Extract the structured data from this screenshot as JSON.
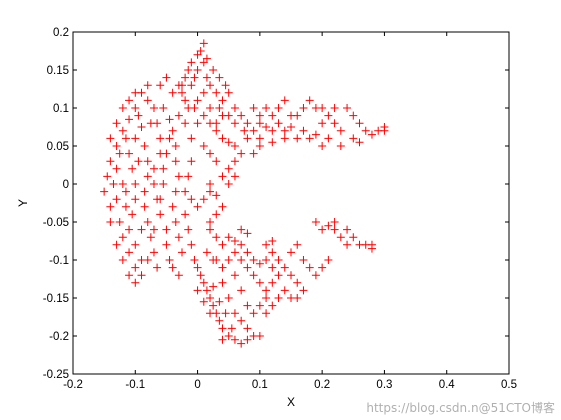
{
  "chart_data": {
    "type": "scatter",
    "xlabel": "X",
    "ylabel": "Y",
    "xlim": [
      -0.2,
      0.5
    ],
    "ylim": [
      -0.25,
      0.2
    ],
    "xticks": [
      -0.2,
      -0.1,
      0,
      0.1,
      0.2,
      0.3,
      0.4,
      0.5
    ],
    "yticks": [
      -0.25,
      -0.2,
      -0.15,
      -0.1,
      -0.05,
      0,
      0.05,
      0.1,
      0.15,
      0.2
    ],
    "xtick_labels": [
      "-0.2",
      "-0.1",
      "0",
      "0.1",
      "0.2",
      "0.3",
      "0.4",
      "0.5"
    ],
    "ytick_labels": [
      "-0.25",
      "-0.2",
      "-0.15",
      "-0.1",
      "-0.05",
      "0",
      "0.05",
      "0.1",
      "0.15",
      "0.2"
    ],
    "grid": false,
    "legend": "none",
    "marker": "+",
    "marker_color": "#ff0000",
    "series": [
      {
        "points": [
          [
            -0.14,
            0.03
          ],
          [
            -0.145,
            0.01
          ],
          [
            -0.15,
            -0.01
          ],
          [
            -0.14,
            -0.03
          ],
          [
            -0.13,
            0.05
          ],
          [
            -0.12,
            0.07
          ],
          [
            -0.11,
            0.085
          ],
          [
            -0.1,
            0.1
          ],
          [
            -0.125,
            -0.05
          ],
          [
            -0.12,
            -0.07
          ],
          [
            -0.11,
            -0.09
          ],
          [
            -0.1,
            -0.11
          ],
          [
            -0.09,
            -0.12
          ],
          [
            -0.135,
            0.0
          ],
          [
            -0.13,
            -0.02
          ],
          [
            -0.13,
            0.02
          ],
          [
            -0.115,
            0.06
          ],
          [
            -0.11,
            0.04
          ],
          [
            -0.105,
            0.02
          ],
          [
            -0.1,
            0.0
          ],
          [
            -0.1,
            -0.02
          ],
          [
            -0.105,
            -0.04
          ],
          [
            -0.11,
            -0.06
          ],
          [
            -0.1,
            -0.08
          ],
          [
            -0.095,
            0.09
          ],
          [
            -0.09,
            0.075
          ],
          [
            -0.085,
            0.05
          ],
          [
            -0.08,
            0.03
          ],
          [
            -0.08,
            0.01
          ],
          [
            -0.085,
            -0.01
          ],
          [
            -0.085,
            -0.03
          ],
          [
            -0.08,
            -0.05
          ],
          [
            -0.075,
            -0.07
          ],
          [
            -0.07,
            -0.09
          ],
          [
            -0.065,
            -0.11
          ],
          [
            -0.08,
            0.11
          ],
          [
            -0.07,
            0.1
          ],
          [
            -0.065,
            0.08
          ],
          [
            -0.06,
            0.06
          ],
          [
            -0.06,
            0.04
          ],
          [
            -0.055,
            0.02
          ],
          [
            -0.055,
            0.0
          ],
          [
            -0.06,
            -0.02
          ],
          [
            -0.06,
            -0.04
          ],
          [
            -0.05,
            -0.06
          ],
          [
            -0.05,
            -0.08
          ],
          [
            -0.045,
            -0.1
          ],
          [
            -0.055,
            0.1
          ],
          [
            -0.045,
            0.085
          ],
          [
            -0.04,
            0.07
          ],
          [
            -0.035,
            0.05
          ],
          [
            -0.035,
            0.03
          ],
          [
            -0.03,
            0.01
          ],
          [
            -0.035,
            -0.01
          ],
          [
            -0.04,
            -0.03
          ],
          [
            -0.035,
            -0.05
          ],
          [
            -0.03,
            -0.07
          ],
          [
            -0.025,
            -0.09
          ],
          [
            -0.04,
            0.12
          ],
          [
            -0.03,
            0.13
          ],
          [
            -0.02,
            0.14
          ],
          [
            -0.015,
            0.15
          ],
          [
            -0.01,
            0.16
          ],
          [
            0.0,
            0.17
          ],
          [
            0.005,
            0.175
          ],
          [
            0.01,
            0.185
          ],
          [
            -0.025,
            0.12
          ],
          [
            -0.02,
            0.11
          ],
          [
            -0.015,
            0.1
          ],
          [
            -0.01,
            0.13
          ],
          [
            0.0,
            0.15
          ],
          [
            0.01,
            0.16
          ],
          [
            0.015,
            0.14
          ],
          [
            0.02,
            0.13
          ],
          [
            0.01,
            0.12
          ],
          [
            0.0,
            0.11
          ],
          [
            -0.005,
            0.1
          ],
          [
            0.02,
            0.1
          ],
          [
            0.03,
            0.12
          ],
          [
            0.035,
            0.1
          ],
          [
            0.04,
            0.11
          ],
          [
            0.05,
            0.12
          ],
          [
            0.06,
            0.1
          ],
          [
            0.05,
            0.09
          ],
          [
            0.06,
            0.08
          ],
          [
            0.07,
            0.09
          ],
          [
            0.075,
            0.07
          ],
          [
            0.08,
            0.06
          ],
          [
            0.09,
            0.07
          ],
          [
            0.1,
            0.08
          ],
          [
            0.1,
            0.06
          ],
          [
            0.11,
            0.075
          ],
          [
            0.12,
            0.09
          ],
          [
            0.13,
            0.1
          ],
          [
            0.14,
            0.11
          ],
          [
            0.13,
            0.08
          ],
          [
            0.14,
            0.07
          ],
          [
            0.15,
            0.075
          ],
          [
            0.16,
            0.09
          ],
          [
            0.17,
            0.1
          ],
          [
            0.18,
            0.11
          ],
          [
            0.19,
            0.1
          ],
          [
            0.17,
            0.07
          ],
          [
            0.18,
            0.06
          ],
          [
            0.19,
            0.065
          ],
          [
            0.2,
            0.08
          ],
          [
            0.21,
            0.09
          ],
          [
            0.22,
            0.08
          ],
          [
            0.23,
            0.07
          ],
          [
            0.24,
            0.1
          ],
          [
            0.25,
            0.09
          ],
          [
            0.2,
            0.05
          ],
          [
            0.21,
            0.06
          ],
          [
            0.23,
            0.05
          ],
          [
            0.25,
            0.06
          ],
          [
            0.27,
            0.07
          ],
          [
            0.28,
            0.065
          ],
          [
            0.29,
            0.07
          ],
          [
            0.3,
            0.07
          ],
          [
            0.26,
            0.055
          ],
          [
            0.09,
            0.04
          ],
          [
            0.1,
            0.05
          ],
          [
            0.12,
            0.055
          ],
          [
            0.14,
            0.06
          ],
          [
            0.06,
            0.03
          ],
          [
            0.07,
            0.04
          ],
          [
            0.05,
            0.02
          ],
          [
            0.04,
            0.01
          ],
          [
            0.03,
            0.03
          ],
          [
            0.02,
            0.04
          ],
          [
            0.01,
            0.05
          ],
          [
            -0.01,
            0.03
          ],
          [
            -0.015,
            0.01
          ],
          [
            -0.02,
            -0.01
          ],
          [
            -0.01,
            -0.02
          ],
          [
            0.0,
            -0.03
          ],
          [
            0.01,
            -0.02
          ],
          [
            0.02,
            -0.01
          ],
          [
            0.03,
            -0.015
          ],
          [
            -0.02,
            -0.04
          ],
          [
            -0.015,
            -0.06
          ],
          [
            -0.01,
            -0.08
          ],
          [
            -0.005,
            -0.1
          ],
          [
            0.0,
            -0.11
          ],
          [
            0.005,
            -0.12
          ],
          [
            0.01,
            -0.13
          ],
          [
            0.015,
            -0.14
          ],
          [
            0.02,
            -0.15
          ],
          [
            0.025,
            -0.16
          ],
          [
            0.03,
            -0.17
          ],
          [
            0.035,
            -0.18
          ],
          [
            0.04,
            -0.19
          ],
          [
            0.05,
            -0.2
          ],
          [
            0.06,
            -0.205
          ],
          [
            0.055,
            -0.19
          ],
          [
            0.045,
            -0.17
          ],
          [
            0.035,
            -0.155
          ],
          [
            0.025,
            -0.135
          ],
          [
            0.04,
            -0.13
          ],
          [
            0.05,
            -0.15
          ],
          [
            0.06,
            -0.17
          ],
          [
            0.07,
            -0.18
          ],
          [
            0.08,
            -0.19
          ],
          [
            0.09,
            -0.2
          ],
          [
            0.1,
            -0.2
          ],
          [
            0.06,
            -0.12
          ],
          [
            0.07,
            -0.14
          ],
          [
            0.08,
            -0.16
          ],
          [
            0.09,
            -0.17
          ],
          [
            0.1,
            -0.16
          ],
          [
            0.11,
            -0.15
          ],
          [
            0.05,
            -0.1
          ],
          [
            0.06,
            -0.09
          ],
          [
            0.07,
            -0.1
          ],
          [
            0.08,
            -0.11
          ],
          [
            0.09,
            -0.12
          ],
          [
            0.1,
            -0.13
          ],
          [
            0.11,
            -0.14
          ],
          [
            0.12,
            -0.13
          ],
          [
            0.04,
            -0.08
          ],
          [
            0.05,
            -0.07
          ],
          [
            0.06,
            -0.075
          ],
          [
            0.07,
            -0.08
          ],
          [
            0.08,
            -0.09
          ],
          [
            0.09,
            -0.1
          ],
          [
            0.1,
            -0.105
          ],
          [
            0.11,
            -0.1
          ],
          [
            0.12,
            -0.09
          ],
          [
            0.13,
            -0.1
          ],
          [
            0.14,
            -0.11
          ],
          [
            0.15,
            -0.12
          ],
          [
            0.16,
            -0.13
          ],
          [
            0.14,
            -0.14
          ],
          [
            0.15,
            -0.15
          ],
          [
            0.16,
            -0.15
          ],
          [
            0.17,
            -0.14
          ],
          [
            0.13,
            -0.12
          ],
          [
            0.12,
            -0.11
          ],
          [
            0.02,
            -0.06
          ],
          [
            0.03,
            -0.07
          ],
          [
            0.02,
            -0.05
          ],
          [
            0.17,
            -0.1
          ],
          [
            0.18,
            -0.11
          ],
          [
            0.19,
            -0.12
          ],
          [
            0.2,
            -0.11
          ],
          [
            0.21,
            -0.1
          ],
          [
            0.15,
            -0.09
          ],
          [
            0.16,
            -0.08
          ],
          [
            0.19,
            -0.05
          ],
          [
            0.2,
            -0.06
          ],
          [
            0.22,
            -0.06
          ],
          [
            0.23,
            -0.07
          ],
          [
            0.24,
            -0.08
          ],
          [
            0.25,
            -0.07
          ],
          [
            0.26,
            -0.08
          ],
          [
            0.27,
            -0.08
          ],
          [
            0.28,
            -0.085
          ],
          [
            0.22,
            -0.05
          ],
          [
            0.24,
            -0.06
          ],
          [
            0.03,
            -0.1
          ],
          [
            0.04,
            -0.11
          ],
          [
            0.015,
            -0.09
          ],
          [
            0.025,
            -0.1
          ],
          [
            0.03,
            0.07
          ],
          [
            0.04,
            0.06
          ],
          [
            0.05,
            0.055
          ],
          [
            0.06,
            0.05
          ],
          [
            -0.01,
            0.06
          ],
          [
            -0.02,
            0.08
          ],
          [
            -0.03,
            0.09
          ],
          [
            -0.045,
            0.06
          ],
          [
            -0.05,
            0.04
          ],
          [
            -0.07,
            0.02
          ],
          [
            -0.07,
            0.0
          ],
          [
            -0.065,
            -0.02
          ],
          [
            -0.07,
            -0.06
          ],
          [
            -0.09,
            -0.1
          ],
          [
            -0.1,
            0.06
          ],
          [
            -0.095,
            0.03
          ],
          [
            -0.12,
            0.0
          ],
          [
            -0.125,
            0.04
          ],
          [
            -0.115,
            -0.01
          ],
          [
            -0.115,
            -0.03
          ],
          [
            -0.09,
            -0.06
          ],
          [
            -0.08,
            -0.1
          ],
          [
            -0.075,
            0.08
          ],
          [
            0.0,
            0.08
          ],
          [
            0.01,
            0.09
          ],
          [
            0.02,
            0.08
          ],
          [
            0.03,
            0.08
          ],
          [
            0.04,
            0.09
          ],
          [
            0.09,
            0.1
          ],
          [
            0.1,
            0.09
          ],
          [
            0.11,
            0.1
          ],
          [
            0.12,
            0.07
          ],
          [
            0.16,
            0.06
          ],
          [
            -0.06,
            0.13
          ],
          [
            -0.05,
            0.14
          ],
          [
            -0.08,
            0.13
          ],
          [
            -0.09,
            0.12
          ],
          [
            -0.1,
            0.12
          ],
          [
            -0.11,
            0.11
          ],
          [
            -0.12,
            0.1
          ],
          [
            -0.13,
            0.08
          ],
          [
            -0.14,
            0.06
          ],
          [
            -0.14,
            -0.05
          ],
          [
            -0.13,
            -0.08
          ],
          [
            -0.12,
            -0.1
          ],
          [
            -0.11,
            -0.12
          ],
          [
            -0.1,
            -0.13
          ],
          [
            0.07,
            -0.06
          ],
          [
            0.08,
            -0.065
          ],
          [
            0.11,
            -0.08
          ],
          [
            0.12,
            -0.075
          ],
          [
            0.03,
            -0.04
          ],
          [
            0.04,
            -0.03
          ],
          [
            0.05,
            0.0
          ],
          [
            0.06,
            0.01
          ],
          [
            0.02,
            0.0
          ],
          [
            -0.04,
            -0.11
          ],
          [
            -0.03,
            -0.12
          ],
          [
            0.0,
            -0.14
          ],
          [
            0.01,
            -0.155
          ],
          [
            0.02,
            -0.17
          ],
          [
            0.04,
            -0.205
          ],
          [
            0.07,
            -0.21
          ],
          [
            0.08,
            -0.205
          ],
          [
            0.11,
            -0.17
          ],
          [
            0.12,
            -0.16
          ],
          [
            0.13,
            -0.15
          ],
          [
            0.045,
            0.13
          ],
          [
            0.035,
            0.14
          ],
          [
            0.025,
            0.15
          ],
          [
            0.015,
            0.165
          ],
          [
            -0.005,
            0.14
          ],
          [
            -0.025,
            0.13
          ],
          [
            0.3,
            0.075
          ],
          [
            0.26,
            0.08
          ],
          [
            0.22,
            0.1
          ],
          [
            0.2,
            0.1
          ],
          [
            0.15,
            0.09
          ],
          [
            0.08,
            0.08
          ],
          [
            0.28,
            -0.08
          ],
          [
            0.21,
            -0.055
          ]
        ]
      }
    ]
  },
  "watermark": "https://blog.csdn.n@51CTO博客"
}
